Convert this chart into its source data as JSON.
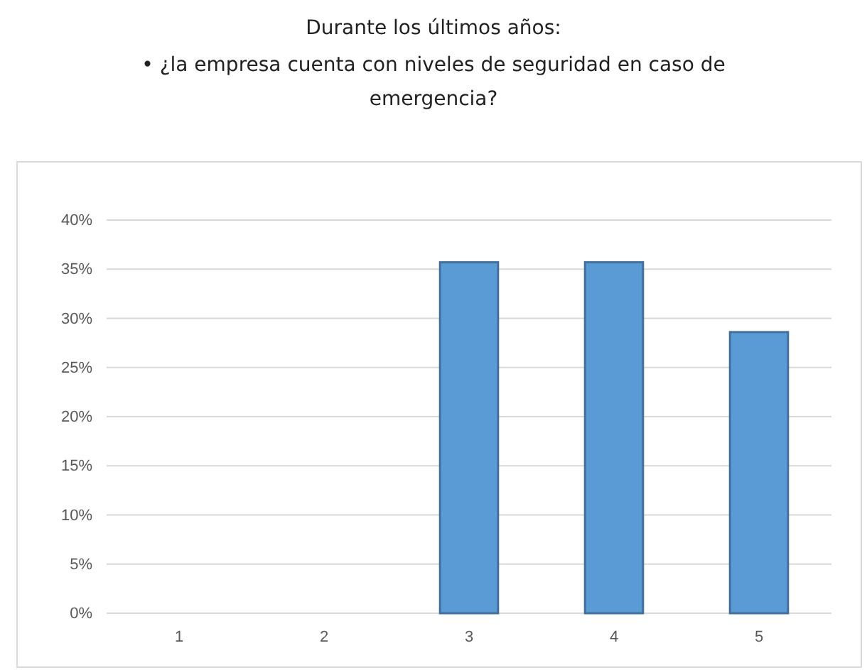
{
  "chart_data": {
    "type": "bar",
    "title": "Durante los últimos años:",
    "subtitle": "• ¿la empresa cuenta con niveles de seguridad en caso de emergencia?",
    "categories": [
      "1",
      "2",
      "3",
      "4",
      "5"
    ],
    "values": [
      0,
      0,
      35.7,
      35.7,
      28.6
    ],
    "color": "#5b9bd5",
    "ylim": [
      0,
      40
    ],
    "yticks": [
      {
        "value": 0,
        "label": "0%"
      },
      {
        "value": 5,
        "label": "5%"
      },
      {
        "value": 10,
        "label": "10%"
      },
      {
        "value": 15,
        "label": "15%"
      },
      {
        "value": 20,
        "label": "20%"
      },
      {
        "value": 25,
        "label": "25%"
      },
      {
        "value": 30,
        "label": "30%"
      },
      {
        "value": 35,
        "label": "35%"
      },
      {
        "value": 40,
        "label": "40%"
      }
    ],
    "grid": "y"
  }
}
